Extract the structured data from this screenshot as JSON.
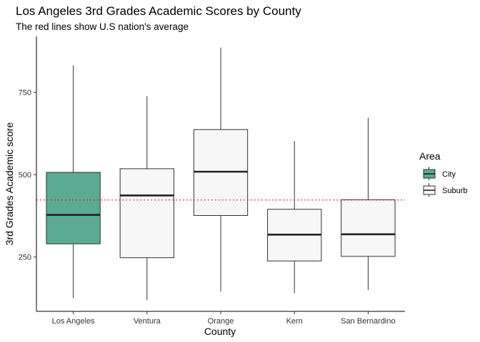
{
  "chart_data": {
    "type": "box",
    "title": "Los Angeles 3rd Grades Academic Scores by County",
    "subtitle": "The red lines show U.S nation's average",
    "xlabel": "County",
    "ylabel": "3rd Grades Academic score",
    "ylim": [
      85,
      920
    ],
    "y_ticks": [
      250,
      500,
      750
    ],
    "grid": false,
    "reference_line": {
      "value": 423,
      "color": "#ff0000",
      "style": "dotted"
    },
    "legend": {
      "title": "Area",
      "placement": "right",
      "entries": [
        {
          "label": "City",
          "color": "#5aab92"
        },
        {
          "label": "Suburb",
          "color": "#f7f7f7"
        }
      ]
    },
    "categories": [
      "Los Angeles",
      "Ventura",
      "Orange",
      "Kern",
      "San Bernardino"
    ],
    "boxes": [
      {
        "category": "Los Angeles",
        "area": "City",
        "min": 125,
        "q1": 290,
        "median": 378,
        "q3": 507,
        "max": 832
      },
      {
        "category": "Ventura",
        "area": "Suburb",
        "min": 120,
        "q1": 248,
        "median": 437,
        "q3": 518,
        "max": 738
      },
      {
        "category": "Orange",
        "area": "Suburb",
        "min": 145,
        "q1": 376,
        "median": 509,
        "q3": 637,
        "max": 886
      },
      {
        "category": "Kern",
        "area": "Suburb",
        "min": 140,
        "q1": 238,
        "median": 318,
        "q3": 395,
        "max": 602
      },
      {
        "category": "San Bernardino",
        "area": "Suburb",
        "min": 150,
        "q1": 252,
        "median": 319,
        "q3": 424,
        "max": 673
      }
    ]
  }
}
